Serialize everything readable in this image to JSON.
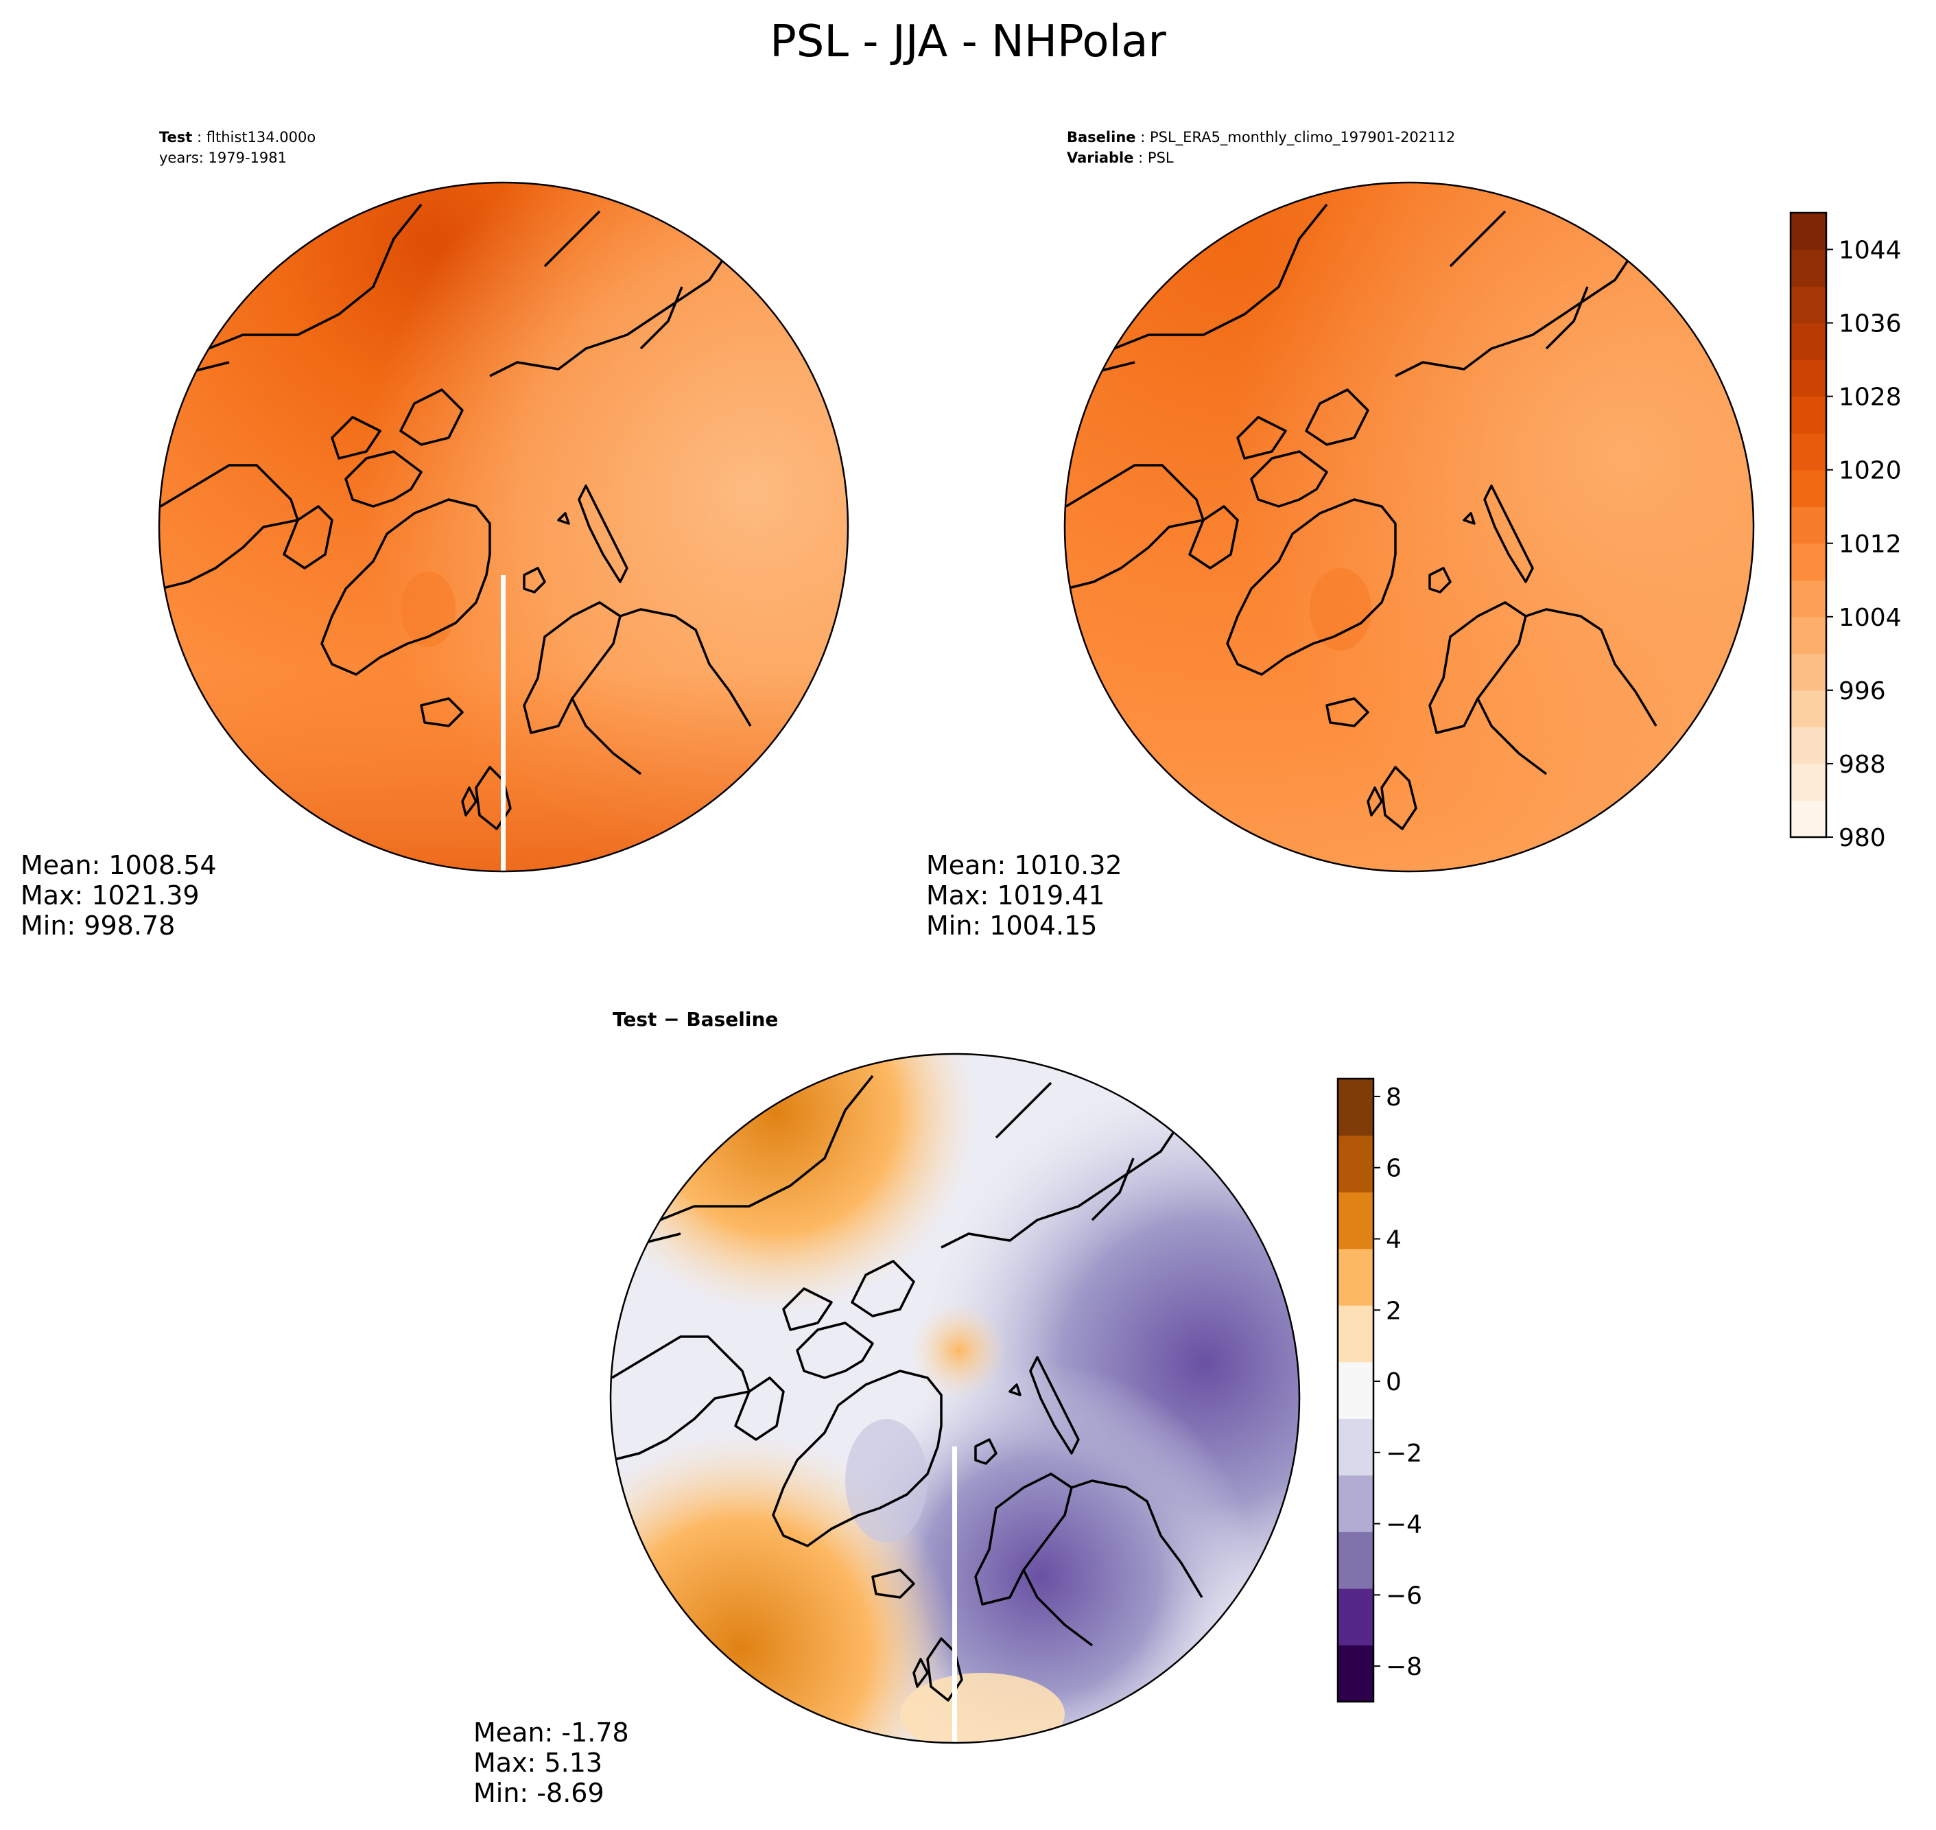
{
  "figure": {
    "title": "PSL - JJA - NHPolar"
  },
  "panels": [
    {
      "id": "test",
      "label1_key": "Test",
      "label1_val": ": flthist134.000o",
      "label2_key": "",
      "label2_val": "years: 1979-1981",
      "stats": [
        "Mean: 1008.54",
        "Max: 1021.39",
        "Min: 998.78"
      ]
    },
    {
      "id": "baseline",
      "label1_key": "Baseline",
      "label1_val": ": PSL_ERA5_monthly_climo_197901-202112",
      "label2_key": "Variable",
      "label2_val": ": PSL",
      "stats": [
        "Mean: 1010.32",
        "Max: 1019.41",
        "Min: 1004.15"
      ]
    },
    {
      "id": "diff",
      "label1_key": "Test − Baseline",
      "label1_val": "",
      "label2_key": "",
      "label2_val": "",
      "stats": [
        "Mean: -1.78",
        "Max:  5.13",
        "Min: -8.69"
      ]
    }
  ],
  "chart_data": [
    {
      "type": "heatmap",
      "name": "colorbar-psl",
      "range": [
        980,
        1048
      ],
      "ticks": [
        980,
        988,
        996,
        1004,
        1012,
        1020,
        1028,
        1036,
        1044
      ],
      "tick_labels": [
        "980",
        "988",
        "996",
        "1004",
        "1012",
        "1020",
        "1028",
        "1036",
        "1044"
      ],
      "levels": [
        980,
        984,
        988,
        992,
        996,
        1000,
        1004,
        1008,
        1012,
        1016,
        1020,
        1024,
        1028,
        1032,
        1036,
        1040,
        1044,
        1048
      ],
      "colors": [
        "#fff5eb",
        "#feebd6",
        "#fde0c1",
        "#fdd0a2",
        "#fdbe85",
        "#fdae6b",
        "#fd9f54",
        "#fd8d3c",
        "#f87d2a",
        "#f16913",
        "#e85a0c",
        "#de4e05",
        "#cc4302",
        "#b83a02",
        "#a63603",
        "#8f2f03",
        "#7f2704"
      ]
    },
    {
      "type": "heatmap",
      "name": "colorbar-diff",
      "range": [
        -9,
        8.5
      ],
      "ticks": [
        -8,
        -6,
        -4,
        -2,
        0,
        2,
        4,
        6,
        8
      ],
      "tick_labels": [
        "−8",
        "−6",
        "−4",
        "−2",
        "0",
        "2",
        "4",
        "6",
        "8"
      ],
      "colors": [
        "#2d004b",
        "#542788",
        "#8073ac",
        "#b2abd2",
        "#d8daeb",
        "#f7f7f7",
        "#fee0b6",
        "#fdb863",
        "#e08214",
        "#b35806",
        "#7f3b08"
      ]
    }
  ]
}
